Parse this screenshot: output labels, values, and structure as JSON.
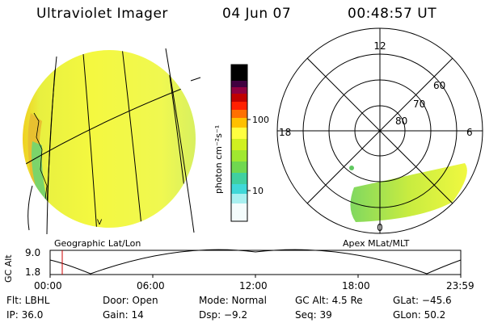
{
  "header": {
    "instrument": "Ultraviolet Imager",
    "date": "04 Jun 07",
    "time": "00:48:57  UT"
  },
  "colorbar": {
    "unit_label": "photon cm⁻²s⁻¹",
    "ticks": [
      "100",
      "10"
    ],
    "scale": "log",
    "colors": [
      "#ffffff",
      "#a8f0f0",
      "#40d8d8",
      "#80e040",
      "#d0f020",
      "#ffff40",
      "#ffc000",
      "#ff7000",
      "#ff0000",
      "#c00000",
      "#900040",
      "#400040",
      "#000000"
    ]
  },
  "left_panel": {
    "caption": "Geographic Lat/Lon"
  },
  "right_panel": {
    "caption": "Apex  MLat/MLT",
    "mlt_labels": {
      "top": "12",
      "left": "18",
      "right": "6",
      "bottom": "0"
    },
    "lat_labels": [
      "60",
      "70",
      "80"
    ]
  },
  "altitude_plot": {
    "ylabel": "GC Alt",
    "ymax": "9.0",
    "ymin": "1.8",
    "time_ticks": [
      "00:00",
      "06:00",
      "12:00",
      "18:00",
      "23:59"
    ],
    "marker_time": "00:48:57",
    "marker_color": "#cc0000"
  },
  "status": {
    "flt": "Flt: LBHL",
    "door": "Door: Open",
    "mode": "Mode: Normal",
    "gc_alt": "GC Alt: 4.5 Re",
    "glat": "GLat: −45.6",
    "ip": "IP: 36.0",
    "gain": "Gain: 14",
    "dsp": "Dsp:   −9.2",
    "seq": "Seq: 39",
    "glon": "GLon:  50.2"
  }
}
